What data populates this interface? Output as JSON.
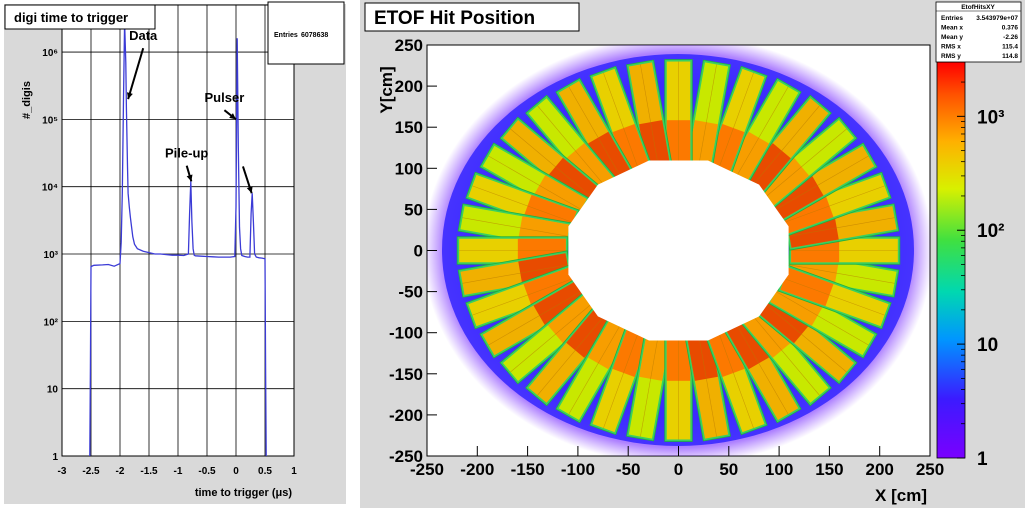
{
  "colors": {
    "canvas_bg": "#d9d9d9",
    "frame_bg": "#ffffff",
    "hist_line": "#3b3bd6",
    "grid": "#000000"
  },
  "chart_data": [
    {
      "type": "line",
      "title": "digi time to trigger",
      "stats_box": {
        "label": "Entries",
        "value": "6078638"
      },
      "xlabel": "time to trigger (μs)",
      "ylabel": "#_digis",
      "xlim": [
        -3,
        1
      ],
      "ylim": [
        1,
        5000000
      ],
      "yscale": "log",
      "grid": true,
      "x_ticks": [
        -3,
        -2.5,
        -2,
        -1.5,
        -1,
        -0.5,
        0,
        0.5,
        1
      ],
      "y_ticks": [
        {
          "value": 1,
          "label": "1"
        },
        {
          "value": 10,
          "label": "10"
        },
        {
          "value": 100,
          "label": "10²"
        },
        {
          "value": 1000,
          "label": "10³"
        },
        {
          "value": 10000,
          "label": "10⁴"
        },
        {
          "value": 100000,
          "label": "10⁵"
        },
        {
          "value": 1000000,
          "label": "10⁶"
        }
      ],
      "series": [
        {
          "x": [
            -2.52,
            -2.51,
            -2.5,
            -2.45,
            -2.3,
            -2.2,
            -2.1,
            -2.0,
            -1.98,
            -1.96,
            -1.94,
            -1.92,
            -1.9,
            -1.89,
            -1.87,
            -1.86,
            -1.84,
            -1.82,
            -1.8,
            -1.78,
            -1.75,
            -1.7,
            -1.6,
            -1.5,
            -1.4,
            -1.3,
            -1.2,
            -1.1,
            -1.0,
            -0.9,
            -0.82,
            -0.8,
            -0.78,
            -0.76,
            -0.74,
            -0.72,
            -0.7,
            -0.6,
            -0.5,
            -0.4,
            -0.3,
            -0.2,
            -0.1,
            -0.02,
            0.0,
            0.02,
            0.04,
            0.06,
            0.08,
            0.1,
            0.15,
            0.2,
            0.24,
            0.26,
            0.28,
            0.3,
            0.32,
            0.35,
            0.4,
            0.45,
            0.5,
            0.51,
            0.52
          ],
          "y": [
            1,
            20,
            650,
            680,
            690,
            700,
            660,
            720,
            1500,
            8000,
            200000,
            2800000,
            700000,
            150000,
            20000,
            8000,
            5000,
            3500,
            2500,
            1800,
            1400,
            1200,
            1100,
            1050,
            1000,
            1000,
            980,
            960,
            960,
            950,
            1000,
            4000,
            12000,
            3000,
            1200,
            960,
            940,
            930,
            920,
            910,
            900,
            900,
            900,
            920,
            5000,
            1600000,
            40000,
            2500,
            1200,
            950,
            920,
            900,
            900,
            4000,
            8000,
            3000,
            1000,
            900,
            880,
            870,
            850,
            20,
            1
          ]
        }
      ],
      "annotations": [
        {
          "text": "Data",
          "x": -1.6,
          "y": 1500000,
          "arrow_to": [
            -1.86,
            200000
          ]
        },
        {
          "text": "Pulser",
          "x": -0.2,
          "y": 180000,
          "arrow_to": [
            0.0,
            100000
          ]
        },
        {
          "text": "Pile-up",
          "x": -0.85,
          "y": 27000,
          "arrow_to": [
            -0.77,
            12000
          ]
        },
        {
          "text": "",
          "x": 0.12,
          "y": 20000,
          "arrow_to": [
            0.27,
            8000
          ]
        }
      ]
    },
    {
      "type": "heatmap",
      "title": "ETOF Hit Position",
      "xlabel": "X [cm]",
      "ylabel": "Y[cm]",
      "xlim": [
        -250,
        250
      ],
      "ylim": [
        -250,
        250
      ],
      "x_ticks": [
        -250,
        -200,
        -150,
        -100,
        -50,
        0,
        50,
        100,
        150,
        200,
        250
      ],
      "y_ticks": [
        -250,
        -200,
        -150,
        -100,
        -50,
        0,
        50,
        100,
        150,
        200,
        250
      ],
      "zscale": "log",
      "zlim": [
        1,
        3000
      ],
      "z_ticks": [
        {
          "value": 1,
          "label": "1"
        },
        {
          "value": 10,
          "label": "10"
        },
        {
          "value": 100,
          "label": "10²"
        },
        {
          "value": 1000,
          "label": "10³"
        }
      ],
      "stats_box": {
        "name": "EtofHitsXY",
        "rows": [
          {
            "label": "Entries",
            "value": "3.543979e+07"
          },
          {
            "label": "Mean x",
            "value": "0.376"
          },
          {
            "label": "Mean y",
            "value": "-2.26"
          },
          {
            "label": "RMS x",
            "value": "115.4"
          },
          {
            "label": "RMS y",
            "value": "114.8"
          }
        ]
      },
      "distribution": {
        "shape": "annulus",
        "inner_radius": 110,
        "outer_radius": 220,
        "halo_radius": 245,
        "sectors": 12,
        "modules_per_sector": 3
      }
    }
  ]
}
